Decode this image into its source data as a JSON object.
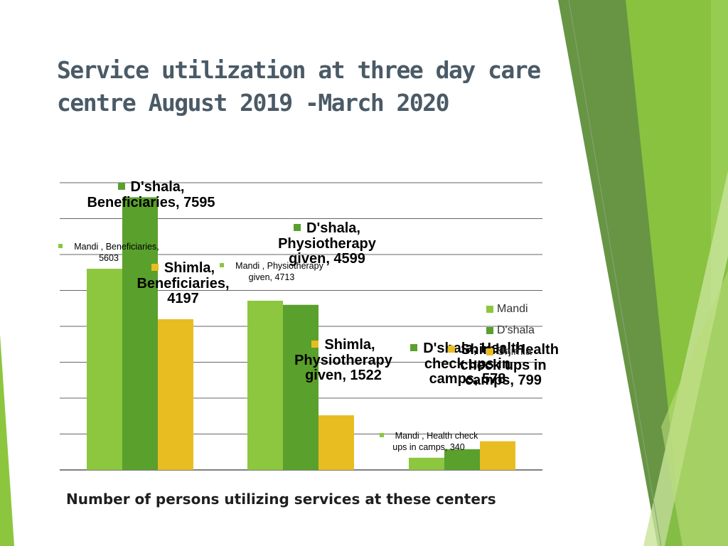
{
  "slide": {
    "title": "Service utilization at three day care centre August 2019 -March 2020",
    "caption": "Number of persons utilizing services at these centers"
  },
  "colors": {
    "Mandi": "#8dc63f",
    "D'shala": "#5aa02c",
    "Shimla": "#e8bd22",
    "title": "#4a5a66",
    "decoration_green": "#6bb33f"
  },
  "chart_data": {
    "type": "bar",
    "categories": [
      "Beneficiaries",
      "Physiotherapy given",
      "Health check ups in camps"
    ],
    "series": [
      {
        "name": "Mandi",
        "values": [
          5603,
          4713,
          340
        ]
      },
      {
        "name": "D'shala",
        "values": [
          7595,
          4599,
          578
        ]
      },
      {
        "name": "Shimla",
        "values": [
          4197,
          1522,
          799
        ]
      }
    ],
    "ylim": [
      0,
      8000
    ],
    "grid": true,
    "legend": "right",
    "data_labels": [
      {
        "series": "Mandi",
        "text": "Mandi , Beneficiaries, 5603",
        "style": "small"
      },
      {
        "series": "D'shala",
        "text": "D'shala, Beneficiaries, 7595",
        "style": "big"
      },
      {
        "series": "Shimla",
        "text": "Shimla, Beneficiaries, 4197",
        "style": "big"
      },
      {
        "series": "Mandi",
        "text": "Mandi , Physiotherapy given, 4713",
        "style": "small"
      },
      {
        "series": "D'shala",
        "text": "D'shala, Physiotherapy given, 4599",
        "style": "big"
      },
      {
        "series": "Shimla",
        "text": "Shimla, Physiotherapy given, 1522",
        "style": "big"
      },
      {
        "series": "Mandi",
        "text": "Mandi , Health check ups in camps, 340",
        "style": "small"
      },
      {
        "series": "D'shala",
        "text": "D'shala, Health check ups in camps, 578",
        "style": "big"
      },
      {
        "series": "Shimla",
        "text": "Shimla, Health check ups in camps, 799",
        "style": "big"
      }
    ]
  }
}
